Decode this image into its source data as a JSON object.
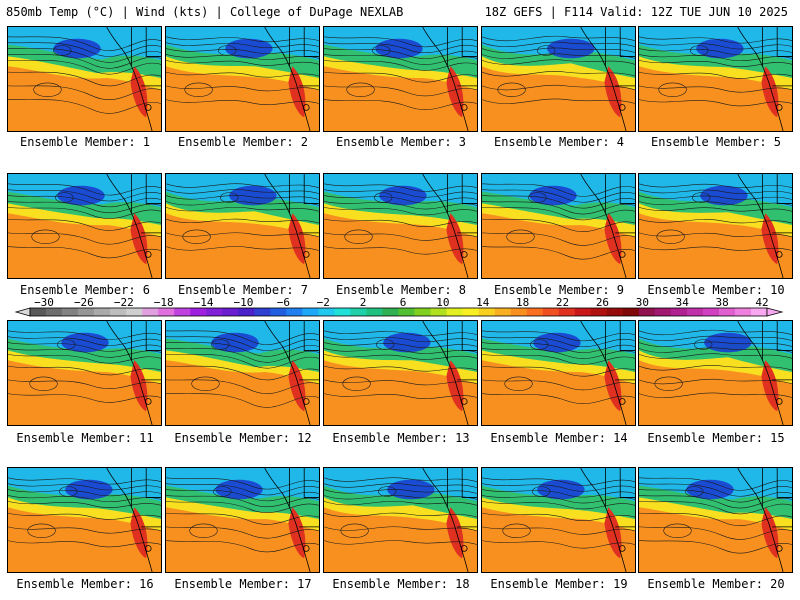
{
  "header": {
    "left_title": "850mb Temp (°C) | Wind (kts) | College of DuPage NEXLAB",
    "right_title": "18Z GEFS | F114 Valid: 12Z TUE JUN 10 2025"
  },
  "panels": [
    {
      "label": "Ensemble Member: 1"
    },
    {
      "label": "Ensemble Member: 2"
    },
    {
      "label": "Ensemble Member: 3"
    },
    {
      "label": "Ensemble Member: 4"
    },
    {
      "label": "Ensemble Member: 5"
    },
    {
      "label": "Ensemble Member: 6"
    },
    {
      "label": "Ensemble Member: 7"
    },
    {
      "label": "Ensemble Member: 8"
    },
    {
      "label": "Ensemble Member: 9"
    },
    {
      "label": "Ensemble Member: 10"
    },
    {
      "label": "Ensemble Member: 11"
    },
    {
      "label": "Ensemble Member: 12"
    },
    {
      "label": "Ensemble Member: 13"
    },
    {
      "label": "Ensemble Member: 14"
    },
    {
      "label": "Ensemble Member: 15"
    },
    {
      "label": "Ensemble Member: 16"
    },
    {
      "label": "Ensemble Member: 17"
    },
    {
      "label": "Ensemble Member: 18"
    },
    {
      "label": "Ensemble Member: 19"
    },
    {
      "label": "Ensemble Member: 20"
    }
  ],
  "colorbar": {
    "tick_labels": [
      "−30",
      "−26",
      "−22",
      "−18",
      "−14",
      "−10",
      "−6",
      "−2",
      "2",
      "6",
      "10",
      "14",
      "18",
      "22",
      "26",
      "30",
      "34",
      "38",
      "42"
    ],
    "colors": [
      "#5a5a5a",
      "#6e6e6e",
      "#828282",
      "#969696",
      "#aaaaaa",
      "#bdbdbd",
      "#cfcfcf",
      "#e0a0e0",
      "#e070e0",
      "#c040e0",
      "#a020e0",
      "#8020d8",
      "#6a1ed0",
      "#4a20c8",
      "#3040d0",
      "#2060e0",
      "#2080f0",
      "#20a8f8",
      "#20c8f0",
      "#20e0d8",
      "#20d0a8",
      "#20c080",
      "#30b050",
      "#50c030",
      "#80d020",
      "#b0e020",
      "#e0f020",
      "#f8f020",
      "#f8d020",
      "#f8b020",
      "#f89020",
      "#f87020",
      "#f05020",
      "#e03020",
      "#c81818",
      "#b01010",
      "#960c0c",
      "#800808",
      "#901050",
      "#a01870",
      "#b02090",
      "#c030a8",
      "#d040c0",
      "#e060d0",
      "#f080e0",
      "#f8a8f0"
    ]
  },
  "map_colors": {
    "cold": "#1a3fd0",
    "cool": "#20b8e8",
    "mild": "#30c070",
    "warm": "#f8e020",
    "hot": "#f89020",
    "very_hot": "#e03020"
  }
}
